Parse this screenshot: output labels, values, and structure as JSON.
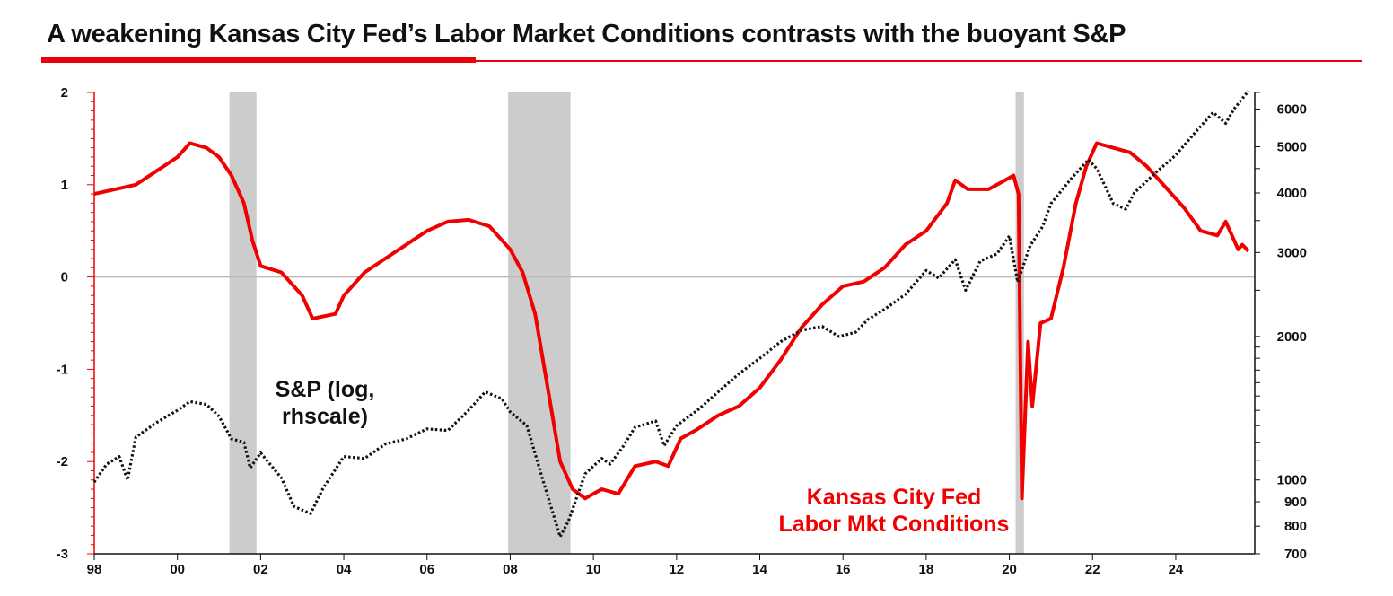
{
  "title": "A weakening Kansas City Fed’s Labor Market Conditions contrasts with the buoyant S&P",
  "colors": {
    "accent": "#e8000b",
    "lmci": "#f00000",
    "sp": "#111111",
    "recession": "#cccccc",
    "zero_line": "#bbbbbb"
  },
  "chart_data": {
    "type": "line",
    "x_axis": {
      "ticks": [
        "98",
        "00",
        "02",
        "04",
        "06",
        "08",
        "10",
        "12",
        "14",
        "16",
        "18",
        "20",
        "22",
        "24"
      ],
      "range": [
        1998,
        2025.9
      ]
    },
    "y_left": {
      "ticks": [
        "2",
        "1",
        "0",
        "-1",
        "-2",
        "-3"
      ],
      "range": [
        -3,
        2
      ]
    },
    "y_right": {
      "scale": "log",
      "ticks": [
        "6000",
        "5000",
        "4000",
        "3000",
        "2000",
        "1000",
        "900",
        "800",
        "700"
      ],
      "range": [
        700,
        6500
      ]
    },
    "recessions": [
      [
        2001.25,
        2001.9
      ],
      [
        2007.95,
        2009.45
      ],
      [
        2020.15,
        2020.35
      ]
    ],
    "annotations": [
      {
        "lines": [
          "S&P (log,",
          "rhscale)"
        ],
        "series": "sp"
      },
      {
        "lines": [
          "Kansas City Fed",
          "Labor Mkt Conditions"
        ],
        "series": "lmci"
      }
    ],
    "series": [
      {
        "key": "lmci",
        "axis": "left",
        "style": "solid",
        "points": [
          [
            1998,
            0.9
          ],
          [
            1998.5,
            0.95
          ],
          [
            1999,
            1.0
          ],
          [
            1999.5,
            1.15
          ],
          [
            2000,
            1.3
          ],
          [
            2000.3,
            1.45
          ],
          [
            2000.7,
            1.4
          ],
          [
            2001,
            1.3
          ],
          [
            2001.3,
            1.1
          ],
          [
            2001.6,
            0.8
          ],
          [
            2001.8,
            0.4
          ],
          [
            2002,
            0.12
          ],
          [
            2002.5,
            0.05
          ],
          [
            2003,
            -0.2
          ],
          [
            2003.25,
            -0.45
          ],
          [
            2003.8,
            -0.4
          ],
          [
            2004,
            -0.2
          ],
          [
            2004.5,
            0.05
          ],
          [
            2005,
            0.2
          ],
          [
            2005.5,
            0.35
          ],
          [
            2006,
            0.5
          ],
          [
            2006.5,
            0.6
          ],
          [
            2007,
            0.62
          ],
          [
            2007.5,
            0.55
          ],
          [
            2008,
            0.3
          ],
          [
            2008.3,
            0.05
          ],
          [
            2008.6,
            -0.4
          ],
          [
            2008.9,
            -1.2
          ],
          [
            2009.2,
            -2.0
          ],
          [
            2009.5,
            -2.3
          ],
          [
            2009.8,
            -2.4
          ],
          [
            2010.2,
            -2.3
          ],
          [
            2010.6,
            -2.35
          ],
          [
            2011,
            -2.05
          ],
          [
            2011.5,
            -2.0
          ],
          [
            2011.8,
            -2.05
          ],
          [
            2012.1,
            -1.75
          ],
          [
            2012.5,
            -1.65
          ],
          [
            2013,
            -1.5
          ],
          [
            2013.5,
            -1.4
          ],
          [
            2014,
            -1.2
          ],
          [
            2014.5,
            -0.9
          ],
          [
            2015,
            -0.55
          ],
          [
            2015.5,
            -0.3
          ],
          [
            2016,
            -0.1
          ],
          [
            2016.5,
            -0.05
          ],
          [
            2017,
            0.1
          ],
          [
            2017.5,
            0.35
          ],
          [
            2018,
            0.5
          ],
          [
            2018.5,
            0.8
          ],
          [
            2018.7,
            1.05
          ],
          [
            2019,
            0.95
          ],
          [
            2019.5,
            0.95
          ],
          [
            2019.9,
            1.05
          ],
          [
            2020.1,
            1.1
          ],
          [
            2020.22,
            0.9
          ],
          [
            2020.3,
            -2.4
          ],
          [
            2020.45,
            -0.7
          ],
          [
            2020.55,
            -1.4
          ],
          [
            2020.75,
            -0.5
          ],
          [
            2021,
            -0.45
          ],
          [
            2021.3,
            0.1
          ],
          [
            2021.6,
            0.8
          ],
          [
            2021.85,
            1.2
          ],
          [
            2022.1,
            1.45
          ],
          [
            2022.5,
            1.4
          ],
          [
            2022.9,
            1.35
          ],
          [
            2023.3,
            1.2
          ],
          [
            2023.8,
            0.95
          ],
          [
            2024.2,
            0.75
          ],
          [
            2024.6,
            0.5
          ],
          [
            2025,
            0.45
          ],
          [
            2025.2,
            0.6
          ],
          [
            2025.5,
            0.3
          ],
          [
            2025.6,
            0.35
          ],
          [
            2025.75,
            0.28
          ]
        ]
      },
      {
        "key": "sp",
        "axis": "right",
        "style": "dotted",
        "points": [
          [
            1998,
            990
          ],
          [
            1998.3,
            1080
          ],
          [
            1998.6,
            1120
          ],
          [
            1998.8,
            1000
          ],
          [
            1999,
            1230
          ],
          [
            1999.5,
            1320
          ],
          [
            2000,
            1400
          ],
          [
            2000.3,
            1460
          ],
          [
            2000.7,
            1440
          ],
          [
            2001,
            1360
          ],
          [
            2001.3,
            1220
          ],
          [
            2001.6,
            1200
          ],
          [
            2001.75,
            1060
          ],
          [
            2002,
            1140
          ],
          [
            2002.5,
            1010
          ],
          [
            2002.8,
            880
          ],
          [
            2003.2,
            850
          ],
          [
            2003.5,
            960
          ],
          [
            2004,
            1120
          ],
          [
            2004.5,
            1110
          ],
          [
            2005,
            1190
          ],
          [
            2005.5,
            1220
          ],
          [
            2006,
            1280
          ],
          [
            2006.5,
            1270
          ],
          [
            2007,
            1400
          ],
          [
            2007.4,
            1530
          ],
          [
            2007.8,
            1480
          ],
          [
            2008,
            1390
          ],
          [
            2008.4,
            1300
          ],
          [
            2008.8,
            990
          ],
          [
            2009.2,
            760
          ],
          [
            2009.4,
            820
          ],
          [
            2009.8,
            1030
          ],
          [
            2010.2,
            1110
          ],
          [
            2010.4,
            1080
          ],
          [
            2010.7,
            1170
          ],
          [
            2011,
            1290
          ],
          [
            2011.5,
            1330
          ],
          [
            2011.7,
            1180
          ],
          [
            2012,
            1300
          ],
          [
            2012.5,
            1400
          ],
          [
            2013,
            1530
          ],
          [
            2013.5,
            1670
          ],
          [
            2014,
            1800
          ],
          [
            2014.5,
            1950
          ],
          [
            2015,
            2060
          ],
          [
            2015.5,
            2100
          ],
          [
            2015.9,
            2000
          ],
          [
            2016.3,
            2040
          ],
          [
            2016.6,
            2170
          ],
          [
            2017,
            2280
          ],
          [
            2017.5,
            2450
          ],
          [
            2018,
            2750
          ],
          [
            2018.3,
            2650
          ],
          [
            2018.7,
            2900
          ],
          [
            2018.95,
            2500
          ],
          [
            2019.3,
            2880
          ],
          [
            2019.7,
            2980
          ],
          [
            2020,
            3250
          ],
          [
            2020.2,
            2600
          ],
          [
            2020.5,
            3100
          ],
          [
            2020.8,
            3400
          ],
          [
            2021,
            3800
          ],
          [
            2021.5,
            4300
          ],
          [
            2021.9,
            4700
          ],
          [
            2022.1,
            4500
          ],
          [
            2022.5,
            3800
          ],
          [
            2022.8,
            3700
          ],
          [
            2023,
            4000
          ],
          [
            2023.5,
            4400
          ],
          [
            2024,
            4800
          ],
          [
            2024.5,
            5400
          ],
          [
            2024.9,
            5900
          ],
          [
            2025.2,
            5600
          ],
          [
            2025.4,
            6000
          ],
          [
            2025.75,
            6550
          ]
        ]
      }
    ]
  }
}
